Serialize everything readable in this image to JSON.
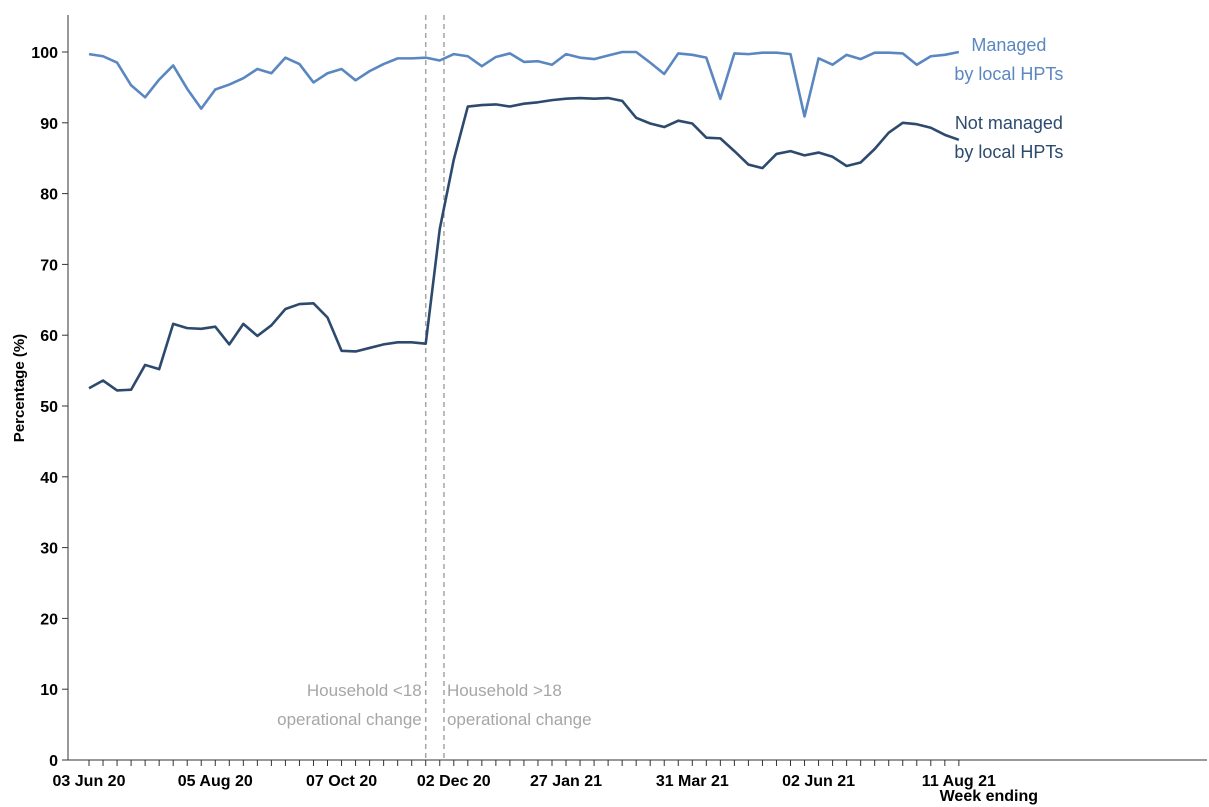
{
  "chart_data": {
    "type": "line",
    "categories": [
      "03 Jun 20",
      null,
      null,
      null,
      null,
      null,
      null,
      null,
      null,
      "05 Aug 20",
      null,
      null,
      null,
      null,
      null,
      null,
      null,
      null,
      "07 Oct 20",
      null,
      null,
      null,
      null,
      null,
      null,
      null,
      "02 Dec 20",
      null,
      null,
      null,
      null,
      null,
      null,
      null,
      "27 Jan 21",
      null,
      null,
      null,
      null,
      null,
      null,
      null,
      null,
      "31 Mar 21",
      null,
      null,
      null,
      null,
      null,
      null,
      null,
      null,
      "02 Jun 21",
      null,
      null,
      null,
      null,
      null,
      null,
      null,
      null,
      null,
      "11 Aug 21"
    ],
    "series": [
      {
        "name": "Managed\nby local HPTs",
        "color": "#5b87c0",
        "values": [
          99.7,
          99.4,
          98.5,
          95.3,
          93.6,
          96.1,
          98.1,
          94.8,
          92.0,
          94.7,
          95.4,
          96.3,
          97.6,
          97.0,
          99.2,
          98.3,
          95.7,
          97.0,
          97.6,
          96.0,
          97.3,
          98.3,
          99.1,
          99.1,
          99.2,
          98.8,
          99.7,
          99.4,
          98.0,
          99.3,
          99.8,
          98.6,
          98.7,
          98.2,
          99.7,
          99.2,
          99.0,
          99.5,
          100,
          100,
          98.5,
          96.9,
          99.8,
          99.6,
          99.2,
          93.4,
          99.8,
          99.7,
          99.9,
          99.9,
          99.7,
          90.9,
          99.1,
          98.2,
          99.6,
          99.0,
          99.9,
          99.9,
          99.8,
          98.2,
          99.4,
          99.6,
          100
        ]
      },
      {
        "name": "Not managed\nby local HPTs",
        "color": "#2d4a6e",
        "values": [
          52.5,
          53.6,
          52.2,
          52.3,
          55.8,
          55.2,
          61.6,
          61.0,
          60.9,
          61.2,
          58.7,
          61.6,
          59.9,
          61.4,
          63.7,
          64.4,
          64.5,
          62.5,
          57.8,
          57.7,
          58.2,
          58.7,
          59.0,
          59.0,
          58.8,
          75.0,
          84.8,
          92.3,
          92.5,
          92.6,
          92.3,
          92.7,
          92.9,
          93.2,
          93.4,
          93.5,
          93.4,
          93.5,
          93.1,
          90.7,
          89.9,
          89.4,
          90.3,
          89.9,
          87.9,
          87.8,
          86.0,
          84.1,
          83.6,
          85.6,
          86.0,
          85.4,
          85.8,
          85.2,
          83.9,
          84.4,
          86.3,
          88.6,
          90.0,
          89.8,
          89.3,
          88.3,
          87.6
        ]
      }
    ],
    "ylim": [
      0,
      105
    ],
    "yticks": [
      0,
      10,
      20,
      30,
      40,
      50,
      60,
      70,
      80,
      90,
      100
    ],
    "y_label": "Percentage (%)",
    "x_label": "Week ending",
    "vlines": [
      {
        "x": 24,
        "label": "Household <18\noperational change",
        "color": "#a6a6a6"
      },
      {
        "x": 25.3,
        "label": "Household >18\noperational change",
        "color": "#a6a6a6"
      }
    ]
  }
}
